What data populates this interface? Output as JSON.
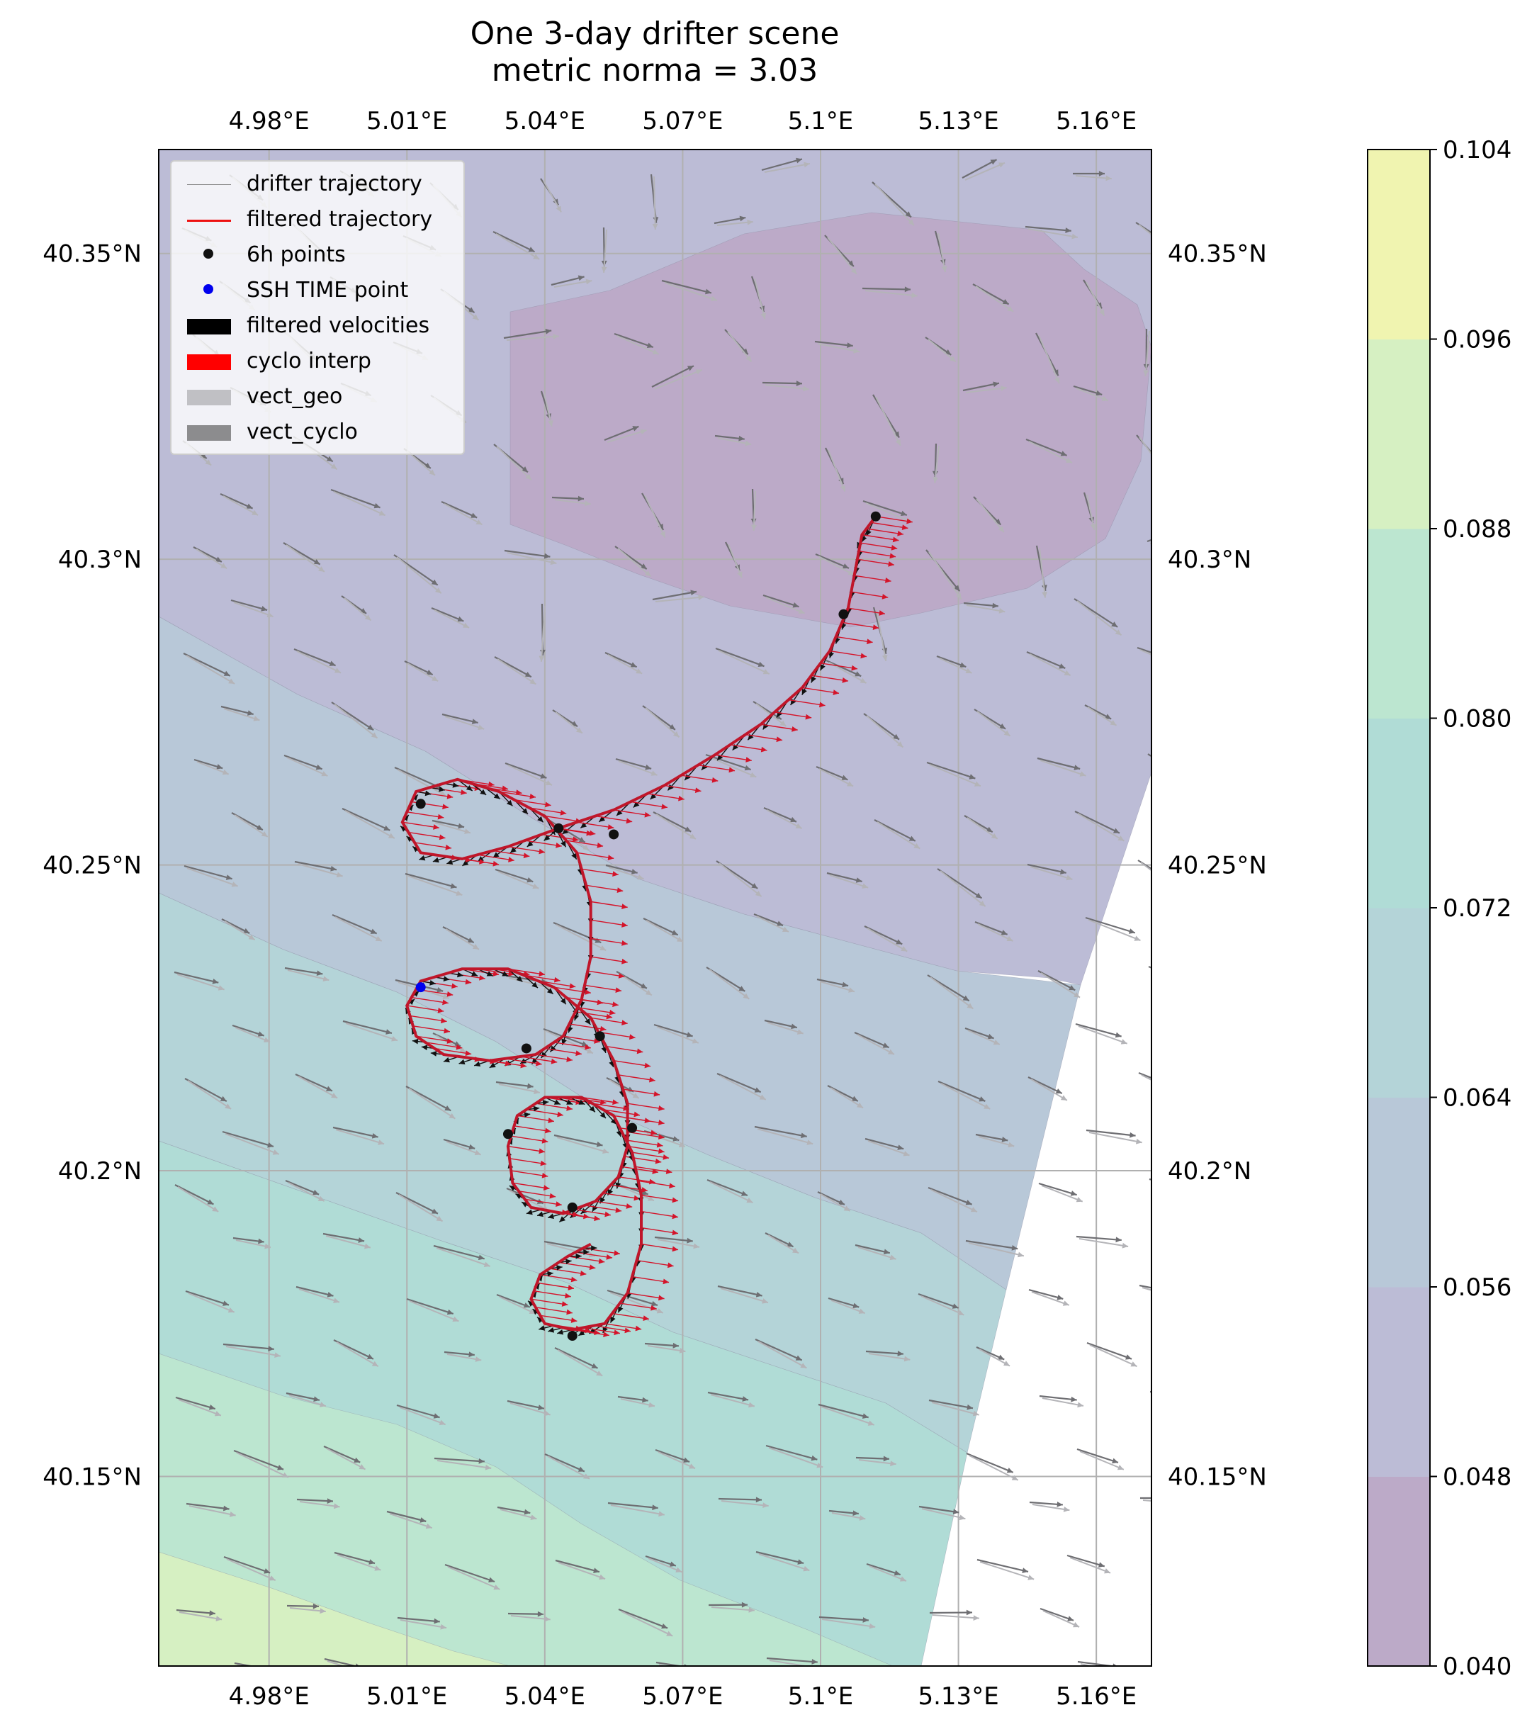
{
  "chart_data": {
    "type": "scatter",
    "title": "One 3-day drifter scene",
    "subtitle": "metric norma = 3.03",
    "x_ticks": [
      "4.98°E",
      "5.01°E",
      "5.04°E",
      "5.07°E",
      "5.1°E",
      "5.13°E",
      "5.16°E"
    ],
    "x_tick_values": [
      4.98,
      5.01,
      5.04,
      5.07,
      5.1,
      5.13,
      5.16
    ],
    "y_ticks": [
      "40.15°N",
      "40.2°N",
      "40.25°N",
      "40.3°N",
      "40.35°N"
    ],
    "y_tick_values": [
      40.15,
      40.2,
      40.25,
      40.3,
      40.35
    ],
    "xlim": [
      4.956,
      5.172
    ],
    "ylim": [
      40.119,
      40.367
    ],
    "grid": true,
    "legend_position": "upper-left",
    "colorbar": {
      "ticks": [
        "0.040",
        "0.048",
        "0.056",
        "0.064",
        "0.072",
        "0.080",
        "0.088",
        "0.096",
        "0.104"
      ],
      "tick_values": [
        0.04,
        0.048,
        0.056,
        0.064,
        0.072,
        0.08,
        0.088,
        0.096,
        0.104
      ],
      "colors": [
        "#bcaac8",
        "#bcbcd6",
        "#b8c8d8",
        "#b4d4d8",
        "#b0dcd6",
        "#bce6d0",
        "#d6f0c2",
        "#f0f4b0"
      ]
    },
    "legend": [
      {
        "label": "drifter trajectory",
        "kind": "line",
        "color": "#888888"
      },
      {
        "label": "filtered trajectory",
        "kind": "line",
        "color": "#ee1111"
      },
      {
        "label": "6h points",
        "kind": "dot",
        "color": "#111111"
      },
      {
        "label": "SSH TIME point",
        "kind": "dot",
        "color": "#0000ee"
      },
      {
        "label": "filtered velocities",
        "kind": "patch",
        "color": "#000000"
      },
      {
        "label": "cyclo interp",
        "kind": "patch",
        "color": "#ff0000"
      },
      {
        "label": "vect_geo",
        "kind": "patch",
        "color": "#c0c0c4"
      },
      {
        "label": "vect_cyclo",
        "kind": "patch",
        "color": "#8c8c8e"
      }
    ],
    "trajectory": [
      [
        5.112,
        40.307
      ],
      [
        5.109,
        40.304
      ],
      [
        5.108,
        40.3
      ],
      [
        5.106,
        40.292
      ],
      [
        5.102,
        40.285
      ],
      [
        5.096,
        40.279
      ],
      [
        5.087,
        40.273
      ],
      [
        5.077,
        40.268
      ],
      [
        5.066,
        40.263
      ],
      [
        5.055,
        40.259
      ],
      [
        5.043,
        40.256
      ],
      [
        5.032,
        40.253
      ],
      [
        5.022,
        40.251
      ],
      [
        5.013,
        40.252
      ],
      [
        5.009,
        40.257
      ],
      [
        5.012,
        40.262
      ],
      [
        5.021,
        40.264
      ],
      [
        5.03,
        40.262
      ],
      [
        5.04,
        40.258
      ],
      [
        5.047,
        40.252
      ],
      [
        5.05,
        40.244
      ],
      [
        5.05,
        40.235
      ],
      [
        5.048,
        40.228
      ],
      [
        5.044,
        40.222
      ],
      [
        5.038,
        40.219
      ],
      [
        5.028,
        40.218
      ],
      [
        5.018,
        40.219
      ],
      [
        5.012,
        40.222
      ],
      [
        5.01,
        40.227
      ],
      [
        5.013,
        40.231
      ],
      [
        5.022,
        40.233
      ],
      [
        5.032,
        40.233
      ],
      [
        5.042,
        40.23
      ],
      [
        5.05,
        40.225
      ],
      [
        5.055,
        40.218
      ],
      [
        5.058,
        40.211
      ],
      [
        5.058,
        40.204
      ],
      [
        5.056,
        40.199
      ],
      [
        5.051,
        40.195
      ],
      [
        5.044,
        40.193
      ],
      [
        5.037,
        40.194
      ],
      [
        5.033,
        40.198
      ],
      [
        5.032,
        40.204
      ],
      [
        5.034,
        40.209
      ],
      [
        5.04,
        40.212
      ],
      [
        5.048,
        40.212
      ],
      [
        5.055,
        40.209
      ],
      [
        5.059,
        40.203
      ],
      [
        5.061,
        40.196
      ],
      [
        5.061,
        40.188
      ],
      [
        5.058,
        40.18
      ],
      [
        5.053,
        40.175
      ],
      [
        5.046,
        40.174
      ],
      [
        5.04,
        40.175
      ],
      [
        5.037,
        40.179
      ],
      [
        5.039,
        40.183
      ],
      [
        5.045,
        40.186
      ],
      [
        5.05,
        40.188
      ]
    ],
    "points_6h": [
      [
        5.112,
        40.307
      ],
      [
        5.105,
        40.291
      ],
      [
        5.055,
        40.255
      ],
      [
        5.043,
        40.256
      ],
      [
        5.013,
        40.26
      ],
      [
        5.052,
        40.222
      ],
      [
        5.036,
        40.22
      ],
      [
        5.059,
        40.207
      ],
      [
        5.032,
        40.206
      ],
      [
        5.046,
        40.194
      ],
      [
        5.046,
        40.173
      ]
    ],
    "ssh_time_point": [
      5.013,
      40.23
    ]
  }
}
